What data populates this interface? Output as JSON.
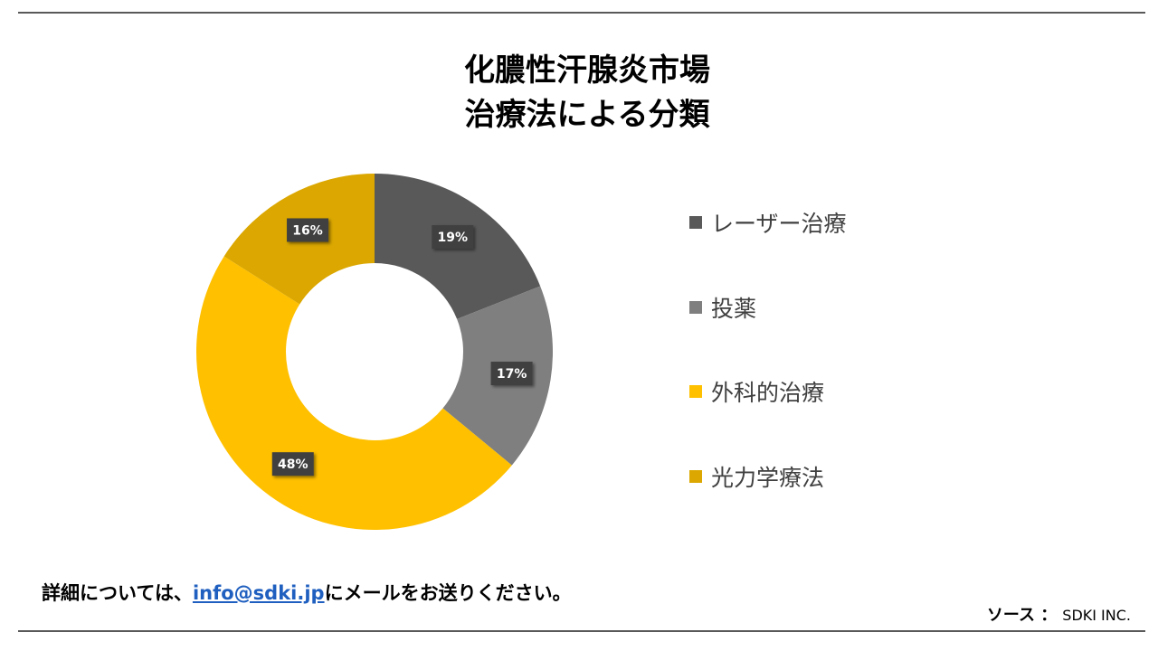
{
  "chart_data": {
    "type": "pie",
    "title": [
      "化膿性汗腺炎市場",
      "治療法による分類"
    ],
    "categories": [
      "レーザー治療",
      "投薬",
      "外科的治療",
      "光力学療法"
    ],
    "values": [
      19,
      17,
      48,
      16
    ],
    "data_labels": [
      "19%",
      "17%",
      "48%",
      "16%"
    ],
    "colors": [
      "#595959",
      "#7f7f7f",
      "#ffc000",
      "#dba700"
    ],
    "legend_position": "right"
  },
  "footer": {
    "prefix": "詳細については、",
    "email": "info@sdki.jp",
    "suffix": "にメールをお送りください。"
  },
  "source": {
    "label": "ソース ：",
    "value": "SDKI INC."
  }
}
